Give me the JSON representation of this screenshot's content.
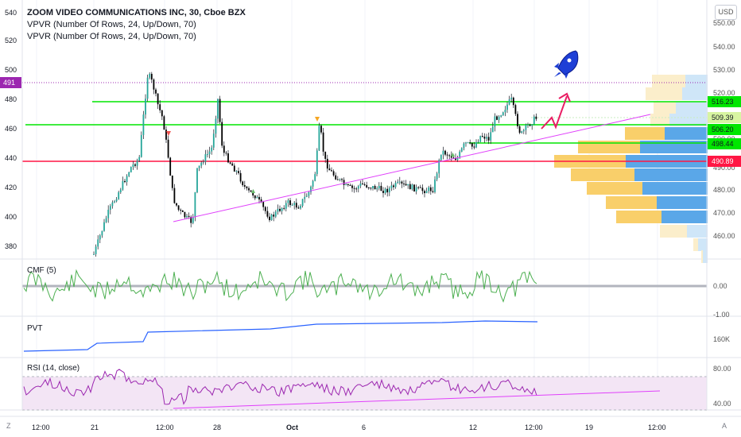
{
  "header": {
    "title": "ZOOM VIDEO COMMUNICATIONS INC, 30, Cboe BZX",
    "indicators": [
      "VPVR (Number Of Rows, 24, Up/Down, 70)",
      "VPVR (Number Of Rows, 24, Up/Down, 70)"
    ]
  },
  "currency": "USD",
  "corner_left": "Z",
  "corner_right": "A",
  "chart_data": [
    {
      "type": "candlestick",
      "left_axis_ticks": [
        "540",
        "520",
        "500",
        "491",
        "480",
        "460",
        "440",
        "420",
        "400",
        "380"
      ],
      "right_axis_ticks": [
        "550.00",
        "540.00",
        "530.00",
        "520.00",
        "510.00",
        "500.00",
        "490.00",
        "480.00",
        "470.00",
        "460.00"
      ],
      "price_tags": [
        {
          "label": "491",
          "color": "#9c27b0",
          "side": "left"
        },
        {
          "label": "516.23",
          "color": "#00e600",
          "side": "right"
        },
        {
          "label": "509.39",
          "color": "#d8f5a2",
          "side": "right"
        },
        {
          "label": "506.20",
          "color": "#00e600",
          "side": "right"
        },
        {
          "label": "498.44",
          "color": "#00e600",
          "side": "right"
        },
        {
          "label": "490.89",
          "color": "#ff1744",
          "side": "right"
        }
      ],
      "horizontal_levels": [
        516.23,
        506.2,
        498.44,
        490.89
      ],
      "x_tick_labels": [
        "12:00",
        "21",
        "12:00",
        "28",
        "Oct",
        "6",
        "12",
        "12:00",
        "19",
        "12:00"
      ],
      "colors": {
        "up": "#26a69a",
        "down": "#000000",
        "wick": "#131722",
        "trendline": "#e040fb"
      }
    },
    {
      "type": "line",
      "name": "CMF (5)",
      "y_ticks": [
        "0.00",
        "-1.00"
      ],
      "colors": {
        "line": "#4caf50",
        "zero": "#b2b5be"
      }
    },
    {
      "type": "line",
      "name": "PVT",
      "y_ticks": [
        "160K"
      ],
      "colors": {
        "line": "#2962ff"
      }
    },
    {
      "type": "line",
      "name": "RSI (14, close)",
      "y_ticks": [
        "80.00",
        "40.00"
      ],
      "bands": [
        70,
        30
      ],
      "colors": {
        "line": "#9c27b0",
        "band": "#f3e5f5",
        "trendline": "#e040fb"
      }
    }
  ]
}
